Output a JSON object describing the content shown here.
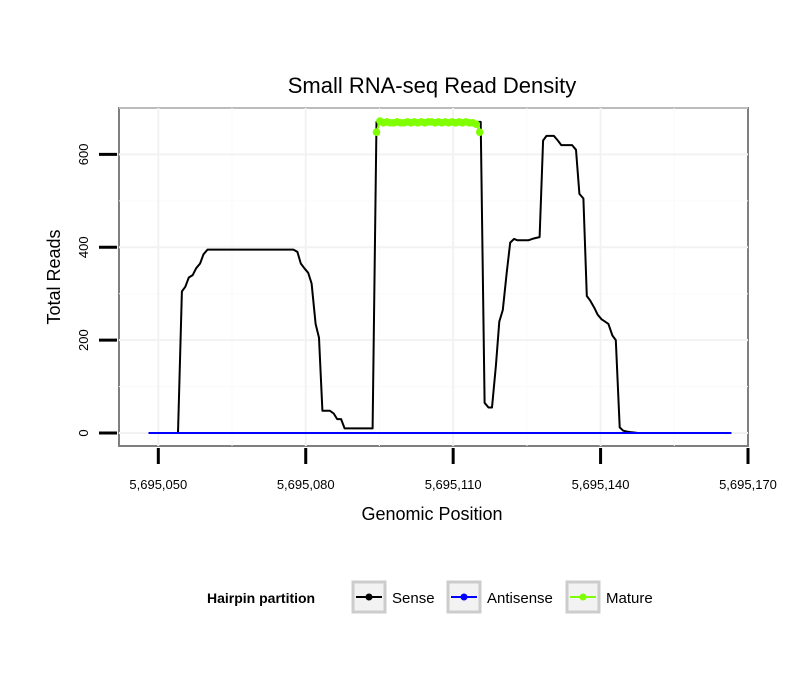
{
  "chart_data": {
    "type": "line",
    "title": "Small RNA-seq Read Density",
    "xlabel": "Genomic Position",
    "ylabel": "Total Reads",
    "xlim": [
      5695042,
      5695170
    ],
    "ylim": [
      -28,
      700
    ],
    "grid": true,
    "x_ticks": [
      5695050,
      5695080,
      5695110,
      5695140,
      5695170
    ],
    "x_tick_labels": [
      "5,695,050",
      "5,695,080",
      "5,695,110",
      "5,695,140",
      "5,695,170"
    ],
    "y_ticks": [
      0,
      200,
      400,
      600
    ],
    "y_tick_labels": [
      "0",
      "200",
      "400",
      "600"
    ],
    "legend": {
      "title": "Hairpin partition",
      "placement": "bottom",
      "entries": [
        {
          "name": "Sense",
          "color": "#000000"
        },
        {
          "name": "Antisense",
          "color": "#0000ff"
        },
        {
          "name": "Mature",
          "color": "#80ff00"
        }
      ]
    },
    "series": [
      {
        "name": "Sense",
        "color": "#000000",
        "x": [
          5695048,
          5695054,
          5695054.8,
          5695055.5,
          5695056.2,
          5695057,
          5695057.7,
          5695058.5,
          5695059.2,
          5695060,
          5695077.5,
          5695078.3,
          5695079,
          5695079.7,
          5695080.5,
          5695081.2,
          5695082,
          5695082.7,
          5695083.4,
          5695084.2,
          5695084.9,
          5695085.7,
          5695086.4,
          5695087.2,
          5695087.9,
          5695088.6,
          5695093.6,
          5695094.4,
          5695115.6,
          5695116.4,
          5695117.2,
          5695117.9,
          5695118.7,
          5695119.4,
          5695120.1,
          5695120.9,
          5695121.6,
          5695122.4,
          5695123.1,
          5695125.3,
          5695126.1,
          5695126.8,
          5695127.6,
          5695128.3,
          5695129,
          5695129.8,
          5695130.5,
          5695131.3,
          5695132,
          5695132.7,
          5695133.5,
          5695134.2,
          5695135,
          5695135.7,
          5695136.5,
          5695137.2,
          5695137.9,
          5695138.7,
          5695139.4,
          5695140.2,
          5695140.9,
          5695141.6,
          5695142.4,
          5695143.1,
          5695143.9,
          5695144.6,
          5695145.4,
          5695146.1,
          5695146.8,
          5695147.6,
          5695148.3,
          5695149.1,
          5695149.8,
          5695150.5,
          5695151.3,
          5695152.8,
          5695153.5,
          5695166.6
        ],
        "y": [
          0,
          0,
          305,
          315,
          335,
          340,
          355,
          365,
          385,
          395,
          395,
          390,
          365,
          355,
          345,
          322,
          235,
          205,
          48,
          48,
          48,
          42,
          30,
          30,
          10,
          10,
          10,
          670,
          670,
          65,
          55,
          55,
          145,
          240,
          265,
          345,
          410,
          418,
          415,
          415,
          418,
          420,
          422,
          630,
          640,
          640,
          640,
          630,
          620,
          620,
          620,
          620,
          610,
          515,
          505,
          295,
          285,
          270,
          255,
          245,
          240,
          235,
          210,
          200,
          12,
          5,
          3,
          2,
          1,
          0,
          0,
          0,
          0,
          0,
          0,
          0,
          0,
          0
        ]
      },
      {
        "name": "Antisense",
        "color": "#0000ff",
        "x": [
          5695048,
          5695166.6
        ],
        "y": [
          0,
          0
        ]
      },
      {
        "name": "Mature",
        "color": "#80ff00",
        "x": [
          5695094.4,
          5695095.1,
          5695095.8,
          5695096.5,
          5695097.2,
          5695097.9,
          5695098.6,
          5695099.3,
          5695100,
          5695100.7,
          5695101.4,
          5695102.1,
          5695102.8,
          5695103.5,
          5695104.2,
          5695104.9,
          5695105.6,
          5695106.3,
          5695107,
          5695107.7,
          5695108.4,
          5695109.1,
          5695109.8,
          5695110.5,
          5695111.2,
          5695111.9,
          5695112.6,
          5695113.3,
          5695114,
          5695114.7,
          5695115.4
        ],
        "y": [
          648,
          672,
          668,
          670,
          668,
          668,
          670,
          668,
          668,
          670,
          668,
          670,
          668,
          670,
          668,
          670,
          670,
          668,
          670,
          668,
          670,
          668,
          670,
          668,
          670,
          668,
          670,
          668,
          668,
          665,
          648
        ]
      }
    ]
  }
}
